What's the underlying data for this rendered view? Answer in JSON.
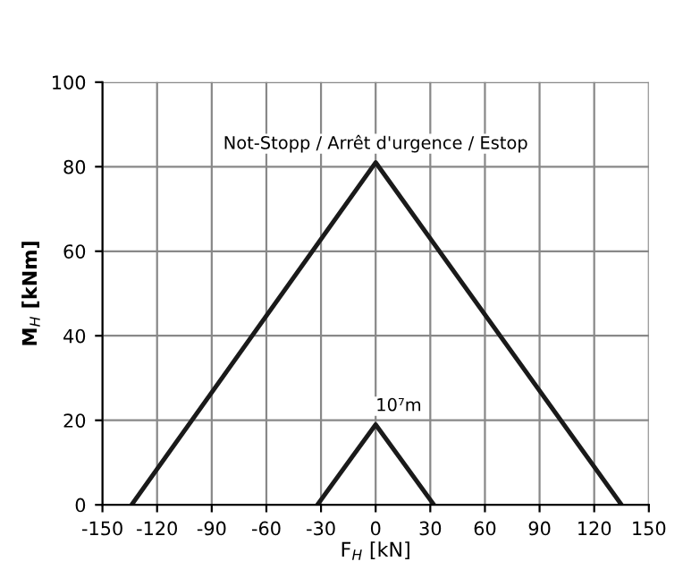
{
  "chart_data": {
    "type": "line",
    "xlabel": "F$_{H}$ [kN]",
    "ylabel": "M$_{H}$ [kNm]",
    "series": [
      {
        "x": [
          -134,
          0,
          135
        ],
        "values": [
          0,
          81,
          0
        ],
        "color": "#1a1a1a"
      },
      {
        "x": [
          -32,
          0,
          32
        ],
        "values": [
          0,
          19,
          0
        ],
        "color": "#1a1a1a"
      }
    ],
    "annotations": [
      {
        "text": "Not-Stopp / Arrêt d'urgence / Estop",
        "x": 0,
        "y": 81
      },
      {
        "text": "10⁷m",
        "x": 0,
        "y": 19
      }
    ],
    "xlim": [
      -150,
      150
    ],
    "xticks": [
      -150,
      -120,
      -90,
      -60,
      -30,
      0,
      30,
      60,
      90,
      120,
      150
    ],
    "ylim": [
      0,
      100
    ],
    "yticks": [
      0,
      20,
      40,
      60,
      80,
      100
    ],
    "grid": true,
    "legend": false
  }
}
